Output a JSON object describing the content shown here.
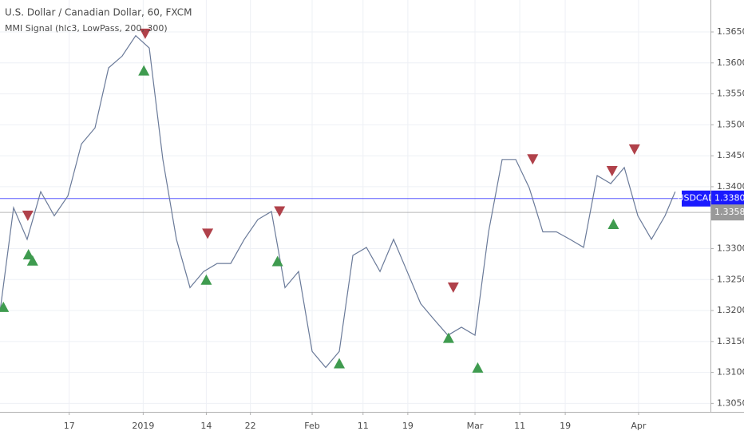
{
  "chart_data": {
    "type": "line",
    "title": "U.S. Dollar / Canadian Dollar, 60, FXCM",
    "subtitle": "MMI Signal (hlc3, LowPass, 200, 300)",
    "x": [
      0,
      2,
      4,
      6,
      8,
      10,
      12,
      14,
      16,
      18,
      20,
      22,
      24,
      26,
      28,
      30,
      32,
      34,
      36,
      38,
      40,
      42,
      44,
      46,
      48,
      50,
      52,
      54,
      56,
      58,
      60,
      62,
      64,
      66,
      68,
      70,
      72,
      74,
      76,
      78,
      80,
      82,
      84,
      86,
      88,
      90,
      92,
      94,
      96,
      98,
      99.5
    ],
    "series": [
      {
        "color": "#6a7a99",
        "values": [
          1.3198,
          1.3366,
          1.3315,
          1.3392,
          1.3353,
          1.3385,
          1.3469,
          1.3495,
          1.3592,
          1.3611,
          1.3644,
          1.3624,
          1.3444,
          1.3315,
          1.3237,
          1.3263,
          1.3276,
          1.3276,
          1.3315,
          1.3347,
          1.336,
          1.3237,
          1.3263,
          1.3134,
          1.3108,
          1.3134,
          1.3289,
          1.3302,
          1.3263,
          1.3315,
          1.3263,
          1.3211,
          1.3185,
          1.316,
          1.3173,
          1.316,
          1.3327,
          1.3444,
          1.3444,
          1.3398,
          1.3327,
          1.3327,
          1.3315,
          1.3302,
          1.3418,
          1.3405,
          1.3431,
          1.3353,
          1.3315,
          1.3353,
          1.3392
        ]
      }
    ],
    "sell_signals": {
      "color": "#b0414a",
      "x": [
        4.1,
        21.4,
        30.6,
        41.2,
        66.8,
        78.5,
        90.2,
        93.5
      ],
      "values": [
        1.3353,
        1.3647,
        1.3324,
        1.336,
        1.3237,
        1.3444,
        1.3425,
        1.346
      ]
    },
    "buy_signals": {
      "color": "#3f9b4f",
      "x": [
        0.5,
        4.2,
        4.8,
        21.2,
        30.4,
        40.9,
        50,
        66.1,
        70.4,
        90.4
      ],
      "values": [
        1.3206,
        1.3291,
        1.3281,
        1.3588,
        1.325,
        1.328,
        1.3115,
        1.3156,
        1.3108,
        1.334
      ]
    },
    "price_lines": [
      {
        "label": "USDCAD",
        "value": 1.33809,
        "color": "#1a1aff"
      },
      {
        "value": 1.33584,
        "color": "#999999"
      }
    ],
    "xlim": [
      0,
      104.7
    ],
    "ylim": [
      1.30363,
      1.37016
    ],
    "xticks": [
      {
        "value": 10.2,
        "label": "17"
      },
      {
        "value": 21.1,
        "label": "2019"
      },
      {
        "value": 30.4,
        "label": "14"
      },
      {
        "value": 36.9,
        "label": "22"
      },
      {
        "value": 46,
        "label": "Feb"
      },
      {
        "value": 53.5,
        "label": "11"
      },
      {
        "value": 60.1,
        "label": "19"
      },
      {
        "value": 70,
        "label": "Mar"
      },
      {
        "value": 76.6,
        "label": "11"
      },
      {
        "value": 83.3,
        "label": "19"
      },
      {
        "value": 94.1,
        "label": "Apr"
      }
    ],
    "yticks": [
      {
        "value": 1.305,
        "label": "1.30500"
      },
      {
        "value": 1.31,
        "label": "1.31000"
      },
      {
        "value": 1.315,
        "label": "1.31500"
      },
      {
        "value": 1.32,
        "label": "1.32000"
      },
      {
        "value": 1.325,
        "label": "1.32500"
      },
      {
        "value": 1.33,
        "label": "1.33000"
      },
      {
        "value": 1.34,
        "label": "1.34000"
      },
      {
        "value": 1.345,
        "label": "1.34500"
      },
      {
        "value": 1.35,
        "label": "1.35000"
      },
      {
        "value": 1.355,
        "label": "1.35500"
      },
      {
        "value": 1.36,
        "label": "1.36000"
      },
      {
        "value": 1.365,
        "label": "1.36500"
      }
    ],
    "grid": true
  }
}
